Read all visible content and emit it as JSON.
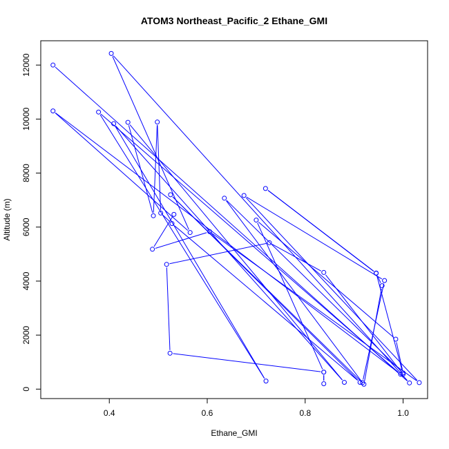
{
  "chart_data": {
    "type": "line",
    "title": "ATOM3 Northeast_Pacific_2 Ethane_GMI",
    "xlabel": "Ethane_GMI",
    "ylabel": "Altitude (m)",
    "xlim": [
      0.26,
      1.05
    ],
    "ylim": [
      -350,
      12900
    ],
    "xticks": [
      0.4,
      0.6,
      0.8,
      1.0
    ],
    "xtick_labels": [
      "0.4",
      "0.6",
      "0.8",
      "1.0"
    ],
    "yticks": [
      0,
      2000,
      4000,
      6000,
      8000,
      10000,
      12000
    ],
    "ytick_labels": [
      "0",
      "2000",
      "4000",
      "6000",
      "8000",
      "10000",
      "12000"
    ],
    "grid": false,
    "marker": "open-circle",
    "colors": {
      "series": "#0000ff",
      "axes": "#000000",
      "background": "#ffffff"
    },
    "series": [
      {
        "points": [
          [
            0.285,
            12000
          ],
          [
            1.013,
            230
          ],
          [
            0.404,
            12430
          ],
          [
            0.565,
            5800
          ],
          [
            0.285,
            10300
          ],
          [
            0.995,
            550
          ],
          [
            0.378,
            10260
          ],
          [
            0.72,
            300
          ],
          [
            0.409,
            9830
          ],
          [
            0.88,
            250
          ],
          [
            0.438,
            9880
          ],
          [
            0.49,
            6420
          ],
          [
            0.498,
            9890
          ],
          [
            0.505,
            6520
          ],
          [
            0.528,
            6130
          ],
          [
            0.912,
            250
          ],
          [
            0.525,
            7200
          ],
          [
            0.92,
            180
          ],
          [
            0.957,
            3830
          ],
          [
            0.945,
            4290
          ],
          [
            0.719,
            7430
          ],
          [
            0.945,
            4300
          ],
          [
            1.0,
            550
          ],
          [
            0.838,
            4320
          ],
          [
            0.727,
            5420
          ],
          [
            0.517,
            4620
          ],
          [
            0.524,
            1330
          ],
          [
            0.838,
            630
          ],
          [
            0.838,
            200
          ],
          [
            0.838,
            630
          ],
          [
            0.7,
            6260
          ],
          [
            0.985,
            1850
          ],
          [
            1.0,
            600
          ],
          [
            0.635,
            7070
          ],
          [
            0.917,
            240
          ],
          [
            0.962,
            4020
          ],
          [
            0.675,
            7170
          ],
          [
            1.033,
            240
          ],
          [
            0.605,
            5830
          ],
          [
            0.488,
            5180
          ],
          [
            0.532,
            6470
          ]
        ]
      }
    ]
  }
}
